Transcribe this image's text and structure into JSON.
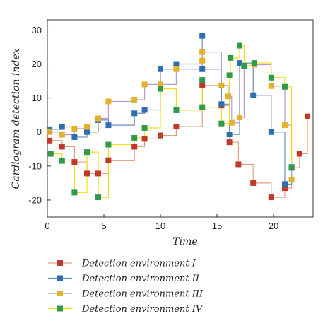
{
  "chart_data": {
    "type": "line",
    "step": true,
    "xlabel": "Time",
    "ylabel": "Cardiogram detection index",
    "xlim": [
      0,
      23.5
    ],
    "ylim": [
      -25,
      33
    ],
    "xticks": [
      0,
      5,
      10,
      15,
      20
    ],
    "yticks": [
      -20,
      -10,
      0,
      10,
      20,
      30
    ],
    "grid": false,
    "legend_position": "bottom",
    "series": [
      {
        "name": "Detection environment I",
        "color": "#c0392b",
        "line_color": "#e0a080",
        "points": [
          [
            0.2,
            -2.5
          ],
          [
            1.3,
            -4.3
          ],
          [
            2.4,
            -8.8
          ],
          [
            3.5,
            -12.2
          ],
          [
            4.5,
            -12.2
          ],
          [
            5.4,
            -8.3
          ],
          [
            7.7,
            -4.3
          ],
          [
            8.6,
            -2
          ],
          [
            10,
            -1
          ],
          [
            11.4,
            1.6
          ],
          [
            13.7,
            13.7
          ],
          [
            15.4,
            7.8
          ],
          [
            16.1,
            -3
          ],
          [
            16.9,
            -9.5
          ],
          [
            18.2,
            -15
          ],
          [
            19.8,
            -19.2
          ],
          [
            21,
            -16.5
          ],
          [
            21.6,
            -10.5
          ],
          [
            22.3,
            -6.4
          ],
          [
            23,
            4.6
          ]
        ]
      },
      {
        "name": "Detection environment II",
        "color": "#2e6db0",
        "line_color": "#6e8fb8",
        "points": [
          [
            0.2,
            0.8
          ],
          [
            1.3,
            1.5
          ],
          [
            2.4,
            -1.5
          ],
          [
            3.5,
            0
          ],
          [
            4.5,
            3.5
          ],
          [
            5.4,
            2
          ],
          [
            7.7,
            5.5
          ],
          [
            8.6,
            6.5
          ],
          [
            10,
            18.5
          ],
          [
            11.4,
            20
          ],
          [
            13.7,
            28.3
          ],
          [
            13.7,
            18.5
          ],
          [
            15.4,
            8.2
          ],
          [
            16.1,
            -0.7
          ],
          [
            17,
            20.3
          ],
          [
            18.2,
            10.8
          ],
          [
            19.8,
            0
          ],
          [
            21,
            -15.3
          ],
          [
            21.6,
            -10.3
          ]
        ]
      },
      {
        "name": "Detection environment III",
        "color": "#e3b22a",
        "line_color": "#b89ad0",
        "points": [
          [
            0.2,
            0
          ],
          [
            1.3,
            -0.8
          ],
          [
            2.4,
            1
          ],
          [
            3.5,
            1.5
          ],
          [
            4.5,
            4
          ],
          [
            5.4,
            9
          ],
          [
            7.7,
            9.5
          ],
          [
            8.6,
            14
          ],
          [
            10,
            14
          ],
          [
            11.4,
            18.5
          ],
          [
            13.7,
            21
          ],
          [
            13.7,
            23.5
          ],
          [
            15.4,
            13.7
          ],
          [
            16,
            10.5
          ],
          [
            16.3,
            2.7
          ],
          [
            17,
            4.3
          ],
          [
            17.4,
            19.5
          ],
          [
            18.3,
            19.8
          ],
          [
            19.8,
            13.5
          ],
          [
            21,
            2
          ],
          [
            21.6,
            -14
          ]
        ]
      },
      {
        "name": "Detection environment IV",
        "color": "#2f9a4a",
        "line_color": "#f0e020",
        "points": [
          [
            0.3,
            -6.4
          ],
          [
            1.3,
            -8.5
          ],
          [
            2.4,
            -17.8
          ],
          [
            3.5,
            -5.9
          ],
          [
            4.5,
            -19.2
          ],
          [
            5.4,
            -3.7
          ],
          [
            7.7,
            -1.7
          ],
          [
            8.6,
            1.2
          ],
          [
            10,
            12.7
          ],
          [
            11.4,
            6.4
          ],
          [
            13.7,
            15.3
          ],
          [
            13.7,
            7.3
          ],
          [
            15.4,
            2.5
          ],
          [
            16.1,
            16.7
          ],
          [
            16.2,
            21.8
          ],
          [
            17,
            25.4
          ],
          [
            17.4,
            19.5
          ],
          [
            18.3,
            20.3
          ],
          [
            19.8,
            16
          ],
          [
            21,
            13.3
          ],
          [
            21.6,
            -10.5
          ]
        ]
      }
    ]
  }
}
